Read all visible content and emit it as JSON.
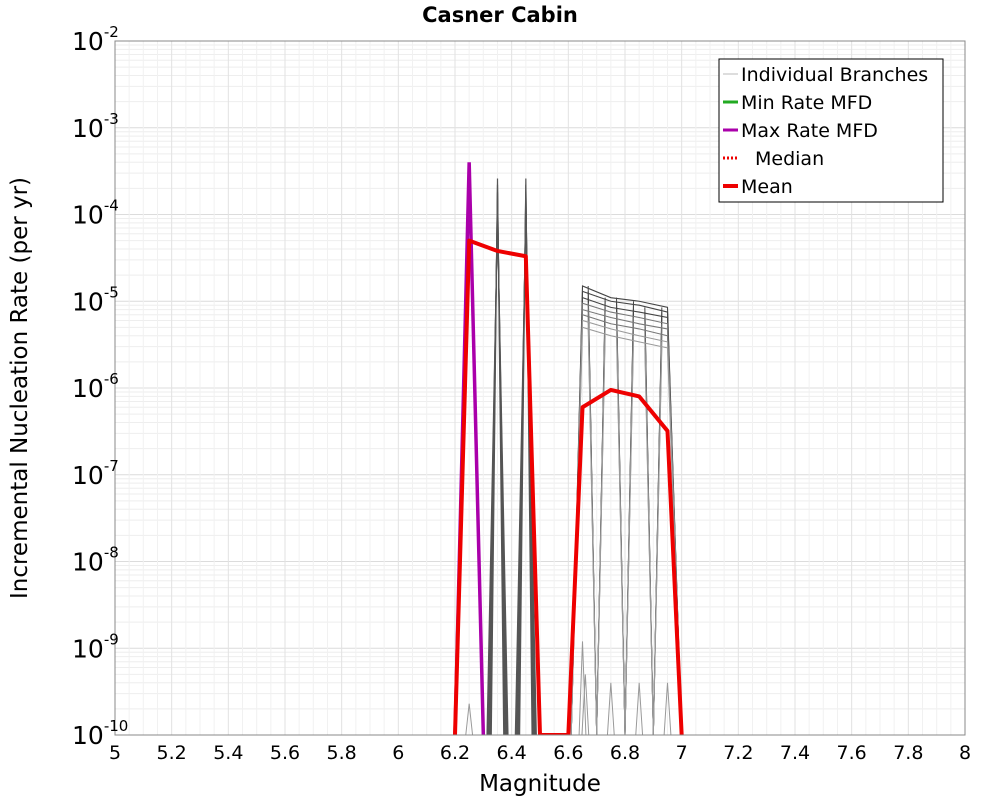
{
  "chart_data": {
    "type": "line",
    "title": "Casner Cabin",
    "xlabel": "Magnitude",
    "ylabel": "Incremental Nucleation Rate (per yr)",
    "xlim": [
      5,
      8
    ],
    "ylim": [
      1e-10,
      0.01
    ],
    "yscale": "log",
    "grid": true,
    "legend_position": "top-right",
    "x_ticks": [
      "5",
      "5.2",
      "5.4",
      "5.6",
      "5.8",
      "6",
      "6.2",
      "6.4",
      "6.6",
      "6.8",
      "7",
      "7.2",
      "7.4",
      "7.6",
      "7.8",
      "8"
    ],
    "y_ticks": [
      {
        "base": "10",
        "exp": "-10"
      },
      {
        "base": "10",
        "exp": "-9"
      },
      {
        "base": "10",
        "exp": "-8"
      },
      {
        "base": "10",
        "exp": "-7"
      },
      {
        "base": "10",
        "exp": "-6"
      },
      {
        "base": "10",
        "exp": "-5"
      },
      {
        "base": "10",
        "exp": "-4"
      },
      {
        "base": "10",
        "exp": "-3"
      },
      {
        "base": "10",
        "exp": "-2"
      }
    ],
    "legend": [
      {
        "label": "Individual Branches",
        "color": "#bbbbbb",
        "style": "thin"
      },
      {
        "label": "Min Rate MFD",
        "color": "#22aa22",
        "style": "solid"
      },
      {
        "label": "Max Rate MFD",
        "color": "#aa00aa",
        "style": "solid"
      },
      {
        "label": "Median",
        "color": "#ee0000",
        "style": "dotted"
      },
      {
        "label": "Mean",
        "color": "#ee0000",
        "style": "thick"
      }
    ],
    "series": [
      {
        "name": "Mean",
        "color": "#ee0000",
        "x": [
          6.2,
          6.25,
          6.35,
          6.45,
          6.5,
          6.6,
          6.65,
          6.75,
          6.85,
          6.95,
          7.0
        ],
        "y": [
          1e-10,
          5e-05,
          3.8e-05,
          3.3e-05,
          1e-10,
          1e-10,
          6e-07,
          9.5e-07,
          8e-07,
          3.2e-07,
          1e-10
        ]
      },
      {
        "name": "Max Rate MFD",
        "color": "#aa00aa",
        "x": [
          6.2,
          6.25,
          6.3
        ],
        "y": [
          1e-10,
          0.0004,
          1e-10
        ]
      },
      {
        "name": "Individual Branches",
        "color": "#555555",
        "peaks": [
          {
            "x": 6.35,
            "values": [
              0.00026,
              0.00022,
              0.00018,
              0.00014,
              0.00011,
              9e-05
            ]
          },
          {
            "x": 6.45,
            "values": [
              0.00026,
              0.00022,
              0.00018,
              0.00014,
              0.00011,
              9e-05
            ]
          }
        ],
        "group": {
          "x_start": 6.6,
          "x_end": 7.0,
          "peak_x": [
            6.65,
            6.75,
            6.85,
            6.95
          ],
          "values": [
            [
              1.5e-05,
              1.1e-05,
              1e-05,
              8.5e-06
            ],
            [
              1.3e-05,
              1e-05,
              9e-06,
              7.5e-06
            ],
            [
              1.1e-05,
              8.5e-06,
              7.5e-06,
              6.5e-06
            ],
            [
              9.5e-06,
              7.5e-06,
              6.5e-06,
              5.5e-06
            ],
            [
              8e-06,
              6.5e-06,
              5.5e-06,
              4.8e-06
            ],
            [
              7e-06,
              5.5e-06,
              4.8e-06,
              4e-06
            ],
            [
              6e-06,
              4.8e-06,
              4e-06,
              3.4e-06
            ],
            [
              5e-06,
              4e-06,
              3.4e-06,
              2.9e-06
            ]
          ]
        },
        "minor_spikes": [
          {
            "x": 6.25,
            "y": 2.3e-10
          },
          {
            "x": 6.65,
            "y": 1.2e-09
          },
          {
            "x": 6.66,
            "y": 5e-10
          },
          {
            "x": 6.75,
            "y": 4e-10
          },
          {
            "x": 6.85,
            "y": 4e-10
          },
          {
            "x": 6.95,
            "y": 4e-10
          }
        ]
      }
    ]
  }
}
